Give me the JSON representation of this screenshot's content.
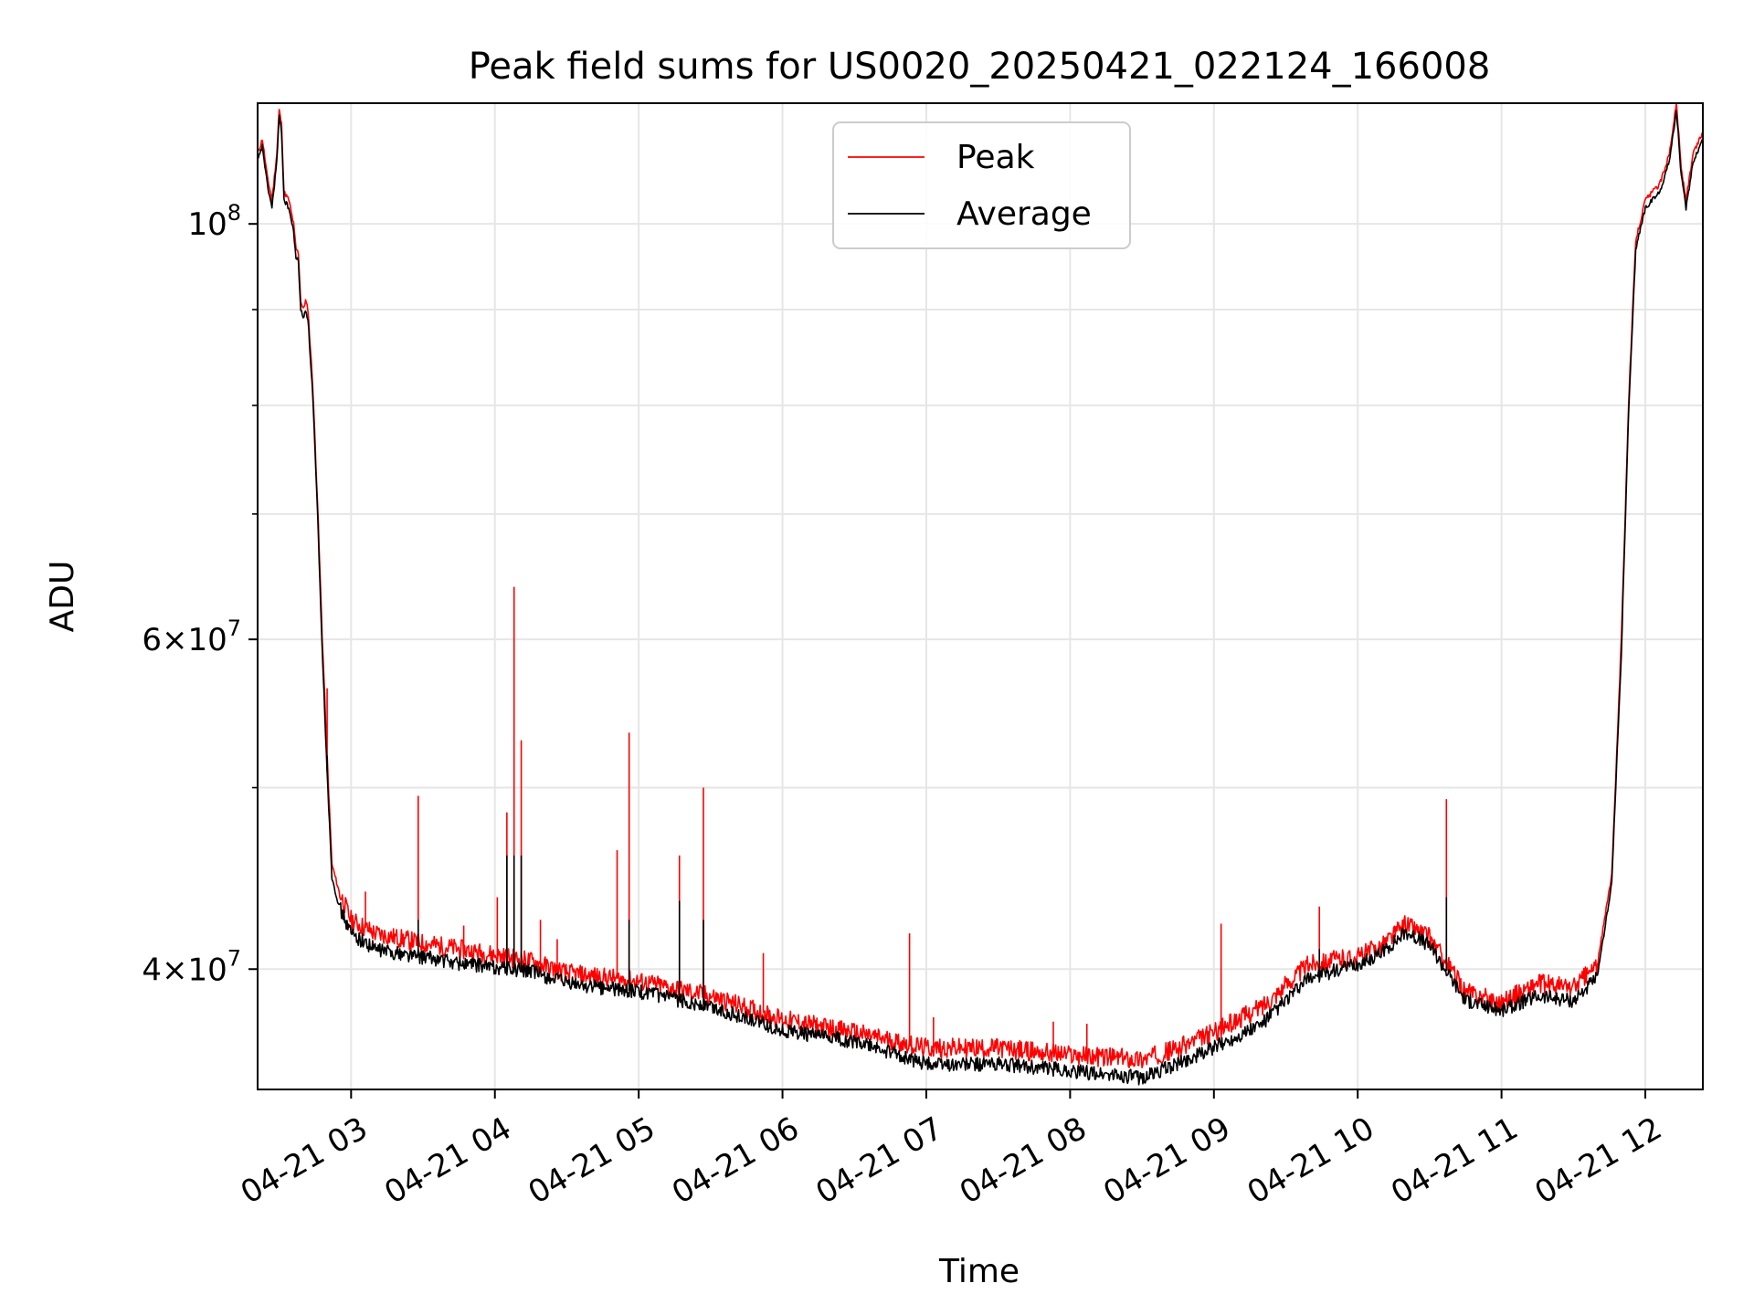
{
  "chart_data": {
    "type": "line",
    "title": "Peak field sums for US0020_20250421_022124_166008",
    "xlabel": "Time",
    "ylabel": "ADU",
    "yscale": "log",
    "xlim": [
      "2025-04-21 02:21",
      "2025-04-21 12:24"
    ],
    "ylim": [
      34500000,
      116000000
    ],
    "grid": true,
    "legend_position": "upper-center",
    "x_ticks": [
      {
        "t": "2025-04-21 03:00",
        "label": "04-21 03"
      },
      {
        "t": "2025-04-21 04:00",
        "label": "04-21 04"
      },
      {
        "t": "2025-04-21 05:00",
        "label": "04-21 05"
      },
      {
        "t": "2025-04-21 06:00",
        "label": "04-21 06"
      },
      {
        "t": "2025-04-21 07:00",
        "label": "04-21 07"
      },
      {
        "t": "2025-04-21 08:00",
        "label": "04-21 08"
      },
      {
        "t": "2025-04-21 09:00",
        "label": "04-21 09"
      },
      {
        "t": "2025-04-21 10:00",
        "label": "04-21 10"
      },
      {
        "t": "2025-04-21 11:00",
        "label": "04-21 11"
      },
      {
        "t": "2025-04-21 12:00",
        "label": "04-21 12"
      }
    ],
    "y_ticks": [
      {
        "v": 100000000,
        "mantissa": "",
        "exp": "8"
      },
      {
        "v": 60000000,
        "mantissa": "6",
        "exp": "7"
      },
      {
        "v": 40000000,
        "mantissa": "4",
        "exp": "7"
      }
    ],
    "y_minor_ticks": [
      50000000,
      70000000,
      80000000,
      90000000
    ],
    "series": [
      {
        "name": "Peak",
        "color": "#ff0000",
        "points": [
          [
            "2025-04-21 02:21",
            109000000
          ],
          [
            "2025-04-21 02:23",
            111000000
          ],
          [
            "2025-04-21 02:25",
            106000000
          ],
          [
            "2025-04-21 02:27",
            103000000
          ],
          [
            "2025-04-21 02:29",
            109000000
          ],
          [
            "2025-04-21 02:30",
            115000000
          ],
          [
            "2025-04-21 02:31",
            113000000
          ],
          [
            "2025-04-21 02:32",
            104000000
          ],
          [
            "2025-04-21 02:34",
            103000000
          ],
          [
            "2025-04-21 02:36",
            100000000
          ],
          [
            "2025-04-21 02:37",
            97000000
          ],
          [
            "2025-04-21 02:38",
            96500000
          ],
          [
            "2025-04-21 02:39",
            91000000
          ],
          [
            "2025-04-21 02:40",
            90000000
          ],
          [
            "2025-04-21 02:41",
            91000000
          ],
          [
            "2025-04-21 02:42",
            90000000
          ],
          [
            "2025-04-21 02:44",
            82000000
          ],
          [
            "2025-04-21 02:46",
            71000000
          ],
          [
            "2025-04-21 02:48",
            60000000
          ],
          [
            "2025-04-21 02:50",
            52000000
          ],
          [
            "2025-04-21 02:52",
            45500000
          ],
          [
            "2025-04-21 02:55",
            44000000
          ],
          [
            "2025-04-21 03:00",
            42500000
          ],
          [
            "2025-04-21 03:10",
            41800000
          ],
          [
            "2025-04-21 03:30",
            41300000
          ],
          [
            "2025-04-21 03:45",
            41000000
          ],
          [
            "2025-04-21 04:00",
            40700000
          ],
          [
            "2025-04-21 04:15",
            40400000
          ],
          [
            "2025-04-21 04:30",
            39800000
          ],
          [
            "2025-04-21 05:00",
            39400000
          ],
          [
            "2025-04-21 05:30",
            38700000
          ],
          [
            "2025-04-21 06:00",
            37600000
          ],
          [
            "2025-04-21 06:30",
            37000000
          ],
          [
            "2025-04-21 07:00",
            36300000
          ],
          [
            "2025-04-21 07:30",
            36300000
          ],
          [
            "2025-04-21 08:00",
            36000000
          ],
          [
            "2025-04-21 08:30",
            35800000
          ],
          [
            "2025-04-21 08:45",
            36300000
          ],
          [
            "2025-04-21 09:00",
            37000000
          ],
          [
            "2025-04-21 09:20",
            38200000
          ],
          [
            "2025-04-21 09:40",
            40300000
          ],
          [
            "2025-04-21 10:00",
            40600000
          ],
          [
            "2025-04-21 10:10",
            41200000
          ],
          [
            "2025-04-21 10:20",
            42300000
          ],
          [
            "2025-04-21 10:30",
            41600000
          ],
          [
            "2025-04-21 10:45",
            38900000
          ],
          [
            "2025-04-21 11:00",
            38400000
          ],
          [
            "2025-04-21 11:15",
            39300000
          ],
          [
            "2025-04-21 11:30",
            39100000
          ],
          [
            "2025-04-21 11:40",
            40200000
          ],
          [
            "2025-04-21 11:46",
            45000000
          ],
          [
            "2025-04-21 11:50",
            60000000
          ],
          [
            "2025-04-21 11:53",
            80000000
          ],
          [
            "2025-04-21 11:56",
            98000000
          ],
          [
            "2025-04-21 12:00",
            103000000
          ],
          [
            "2025-04-21 12:06",
            105000000
          ],
          [
            "2025-04-21 12:10",
            109000000
          ],
          [
            "2025-04-21 12:13",
            116000000
          ],
          [
            "2025-04-21 12:15",
            107000000
          ],
          [
            "2025-04-21 12:17",
            103000000
          ],
          [
            "2025-04-21 12:20",
            109000000
          ],
          [
            "2025-04-21 12:24",
            112000000
          ]
        ],
        "spikes": [
          [
            "2025-04-21 02:50",
            56500000
          ],
          [
            "2025-04-21 03:06",
            44000000
          ],
          [
            "2025-04-21 03:28",
            49500000
          ],
          [
            "2025-04-21 03:47",
            42200000
          ],
          [
            "2025-04-21 04:01",
            43700000
          ],
          [
            "2025-04-21 04:05",
            48500000
          ],
          [
            "2025-04-21 04:08",
            64000000
          ],
          [
            "2025-04-21 04:11",
            53000000
          ],
          [
            "2025-04-21 04:19",
            42500000
          ],
          [
            "2025-04-21 04:26",
            41500000
          ],
          [
            "2025-04-21 04:51",
            46300000
          ],
          [
            "2025-04-21 04:56",
            53500000
          ],
          [
            "2025-04-21 05:17",
            46000000
          ],
          [
            "2025-04-21 05:27",
            50000000
          ],
          [
            "2025-04-21 05:52",
            40800000
          ],
          [
            "2025-04-21 06:53",
            41800000
          ],
          [
            "2025-04-21 07:03",
            37700000
          ],
          [
            "2025-04-21 07:53",
            37500000
          ],
          [
            "2025-04-21 08:07",
            37400000
          ],
          [
            "2025-04-21 09:03",
            42300000
          ],
          [
            "2025-04-21 09:44",
            43200000
          ],
          [
            "2025-04-21 10:37",
            49300000
          ]
        ]
      },
      {
        "name": "Average",
        "color": "#000000",
        "points": [
          [
            "2025-04-21 02:21",
            108000000
          ],
          [
            "2025-04-21 02:23",
            110000000
          ],
          [
            "2025-04-21 02:25",
            105000000
          ],
          [
            "2025-04-21 02:27",
            102000000
          ],
          [
            "2025-04-21 02:29",
            108000000
          ],
          [
            "2025-04-21 02:30",
            114000000
          ],
          [
            "2025-04-21 02:31",
            112000000
          ],
          [
            "2025-04-21 02:32",
            103000000
          ],
          [
            "2025-04-21 02:34",
            102000000
          ],
          [
            "2025-04-21 02:36",
            99000000
          ],
          [
            "2025-04-21 02:37",
            96000000
          ],
          [
            "2025-04-21 02:38",
            95500000
          ],
          [
            "2025-04-21 02:39",
            90000000
          ],
          [
            "2025-04-21 02:40",
            89000000
          ],
          [
            "2025-04-21 02:41",
            90000000
          ],
          [
            "2025-04-21 02:42",
            89000000
          ],
          [
            "2025-04-21 02:44",
            81000000
          ],
          [
            "2025-04-21 02:46",
            70000000
          ],
          [
            "2025-04-21 02:48",
            59000000
          ],
          [
            "2025-04-21 02:50",
            51000000
          ],
          [
            "2025-04-21 02:52",
            44800000
          ],
          [
            "2025-04-21 02:55",
            43200000
          ],
          [
            "2025-04-21 03:00",
            41800000
          ],
          [
            "2025-04-21 03:10",
            41000000
          ],
          [
            "2025-04-21 03:30",
            40600000
          ],
          [
            "2025-04-21 03:45",
            40300000
          ],
          [
            "2025-04-21 04:00",
            40100000
          ],
          [
            "2025-04-21 04:15",
            39900000
          ],
          [
            "2025-04-21 04:30",
            39300000
          ],
          [
            "2025-04-21 05:00",
            38900000
          ],
          [
            "2025-04-21 05:30",
            38200000
          ],
          [
            "2025-04-21 06:00",
            37100000
          ],
          [
            "2025-04-21 06:30",
            36600000
          ],
          [
            "2025-04-21 07:00",
            35600000
          ],
          [
            "2025-04-21 07:30",
            35600000
          ],
          [
            "2025-04-21 08:00",
            35300000
          ],
          [
            "2025-04-21 08:30",
            35000000
          ],
          [
            "2025-04-21 08:45",
            35600000
          ],
          [
            "2025-04-21 09:00",
            36300000
          ],
          [
            "2025-04-21 09:20",
            37400000
          ],
          [
            "2025-04-21 09:40",
            39600000
          ],
          [
            "2025-04-21 10:00",
            40200000
          ],
          [
            "2025-04-21 10:10",
            40800000
          ],
          [
            "2025-04-21 10:20",
            41900000
          ],
          [
            "2025-04-21 10:30",
            41200000
          ],
          [
            "2025-04-21 10:45",
            38500000
          ],
          [
            "2025-04-21 11:00",
            38000000
          ],
          [
            "2025-04-21 11:15",
            38700000
          ],
          [
            "2025-04-21 11:30",
            38500000
          ],
          [
            "2025-04-21 11:40",
            39600000
          ],
          [
            "2025-04-21 11:46",
            44500000
          ],
          [
            "2025-04-21 11:50",
            59000000
          ],
          [
            "2025-04-21 11:53",
            79000000
          ],
          [
            "2025-04-21 11:56",
            97000000
          ],
          [
            "2025-04-21 12:00",
            102000000
          ],
          [
            "2025-04-21 12:06",
            104000000
          ],
          [
            "2025-04-21 12:10",
            108000000
          ],
          [
            "2025-04-21 12:13",
            115000000
          ],
          [
            "2025-04-21 12:15",
            106000000
          ],
          [
            "2025-04-21 12:17",
            102000000
          ],
          [
            "2025-04-21 12:20",
            108000000
          ],
          [
            "2025-04-21 12:24",
            111000000
          ]
        ],
        "spikes": [
          [
            "2025-04-21 02:50",
            52000000
          ],
          [
            "2025-04-21 03:28",
            42500000
          ],
          [
            "2025-04-21 04:05",
            46000000
          ],
          [
            "2025-04-21 04:08",
            46000000
          ],
          [
            "2025-04-21 04:11",
            46000000
          ],
          [
            "2025-04-21 04:56",
            42500000
          ],
          [
            "2025-04-21 05:17",
            43500000
          ],
          [
            "2025-04-21 05:27",
            42500000
          ],
          [
            "2025-04-21 09:44",
            41000000
          ],
          [
            "2025-04-21 10:37",
            43700000
          ]
        ]
      }
    ]
  }
}
